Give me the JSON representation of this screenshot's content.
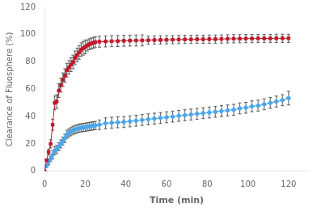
{
  "chart_data": {
    "type": "line",
    "xlabel": "Time (min)",
    "ylabel": "Clearance of Fluosphere (%)",
    "x": [
      0,
      1,
      2,
      3,
      4,
      5,
      6,
      7,
      8,
      9,
      10,
      11,
      12,
      13,
      14,
      15,
      16,
      17,
      18,
      19,
      20,
      21,
      22,
      23,
      24,
      25,
      27,
      30,
      33,
      36,
      39,
      42,
      45,
      48,
      51,
      54,
      57,
      60,
      63,
      66,
      69,
      72,
      75,
      78,
      81,
      84,
      87,
      90,
      93,
      96,
      99,
      102,
      105,
      108,
      111,
      114,
      117,
      120
    ],
    "series": [
      {
        "color": "#c0192c",
        "marker": "square",
        "line_style": "solid",
        "values": [
          0,
          8,
          14,
          20,
          34,
          50,
          51,
          59,
          63,
          67,
          70,
          74,
          76,
          78,
          80,
          83,
          85,
          87,
          89,
          90,
          91,
          92,
          93,
          93.5,
          94,
          94.5,
          94.8,
          95.0,
          95.2,
          95.3,
          95.5,
          95.6,
          95.7,
          95.8,
          95.9,
          96.0,
          96.1,
          96.2,
          96.3,
          96.4,
          96.5,
          96.5,
          96.6,
          96.6,
          96.7,
          96.7,
          96.8,
          96.9,
          97.0,
          97.0,
          97.1,
          97.1,
          97.2,
          97.2,
          97.2,
          97.3,
          97.3,
          97.3
        ],
        "error": [
          0,
          1,
          2,
          3,
          4,
          5,
          5,
          5,
          5,
          5,
          5,
          5,
          5,
          5,
          5,
          5,
          5,
          5,
          5,
          5,
          5,
          4,
          4,
          4,
          4,
          4,
          4,
          4,
          4,
          4,
          4,
          4,
          4,
          4,
          3,
          3,
          3,
          3,
          3,
          3,
          3,
          3,
          3,
          3,
          3,
          3,
          3,
          3,
          3,
          3,
          3,
          3,
          3,
          3,
          3,
          3,
          3,
          3
        ]
      },
      {
        "color": "#4da6e8",
        "marker": "diamond",
        "line_style": "solid",
        "values": [
          0,
          4,
          7,
          9,
          12,
          15,
          16,
          18,
          20,
          22,
          24,
          27,
          28,
          29,
          30,
          30.5,
          31,
          31.5,
          31.8,
          32,
          32.2,
          32.5,
          32.8,
          33,
          33.2,
          33.5,
          34,
          35,
          35.5,
          35.8,
          36,
          36.5,
          37,
          37.5,
          38,
          38.5,
          39,
          39.5,
          40,
          40.5,
          41,
          41.5,
          42,
          42.5,
          43,
          43.5,
          44,
          44.5,
          45,
          46,
          46.5,
          47.5,
          48,
          49,
          50,
          51,
          52,
          53.5
        ],
        "error": [
          0,
          1,
          2,
          2,
          3,
          3,
          3,
          3,
          3,
          3,
          3,
          3,
          3,
          3,
          3,
          3,
          3,
          3,
          3,
          3,
          3,
          3,
          3,
          3,
          3,
          3,
          3.5,
          4,
          4,
          4,
          4,
          4,
          4,
          4,
          4,
          4,
          4,
          4,
          4,
          4,
          4,
          4,
          4,
          4,
          4,
          4,
          4,
          4,
          4,
          4,
          4,
          4,
          4,
          4,
          4,
          4,
          4,
          5
        ]
      }
    ],
    "xlim": [
      0,
      130
    ],
    "ylim": [
      0,
      120
    ],
    "xticks": [
      0,
      20,
      40,
      60,
      80,
      100,
      120
    ],
    "yticks": [
      0,
      20,
      40,
      60,
      80,
      100,
      120
    ],
    "grid": false
  }
}
